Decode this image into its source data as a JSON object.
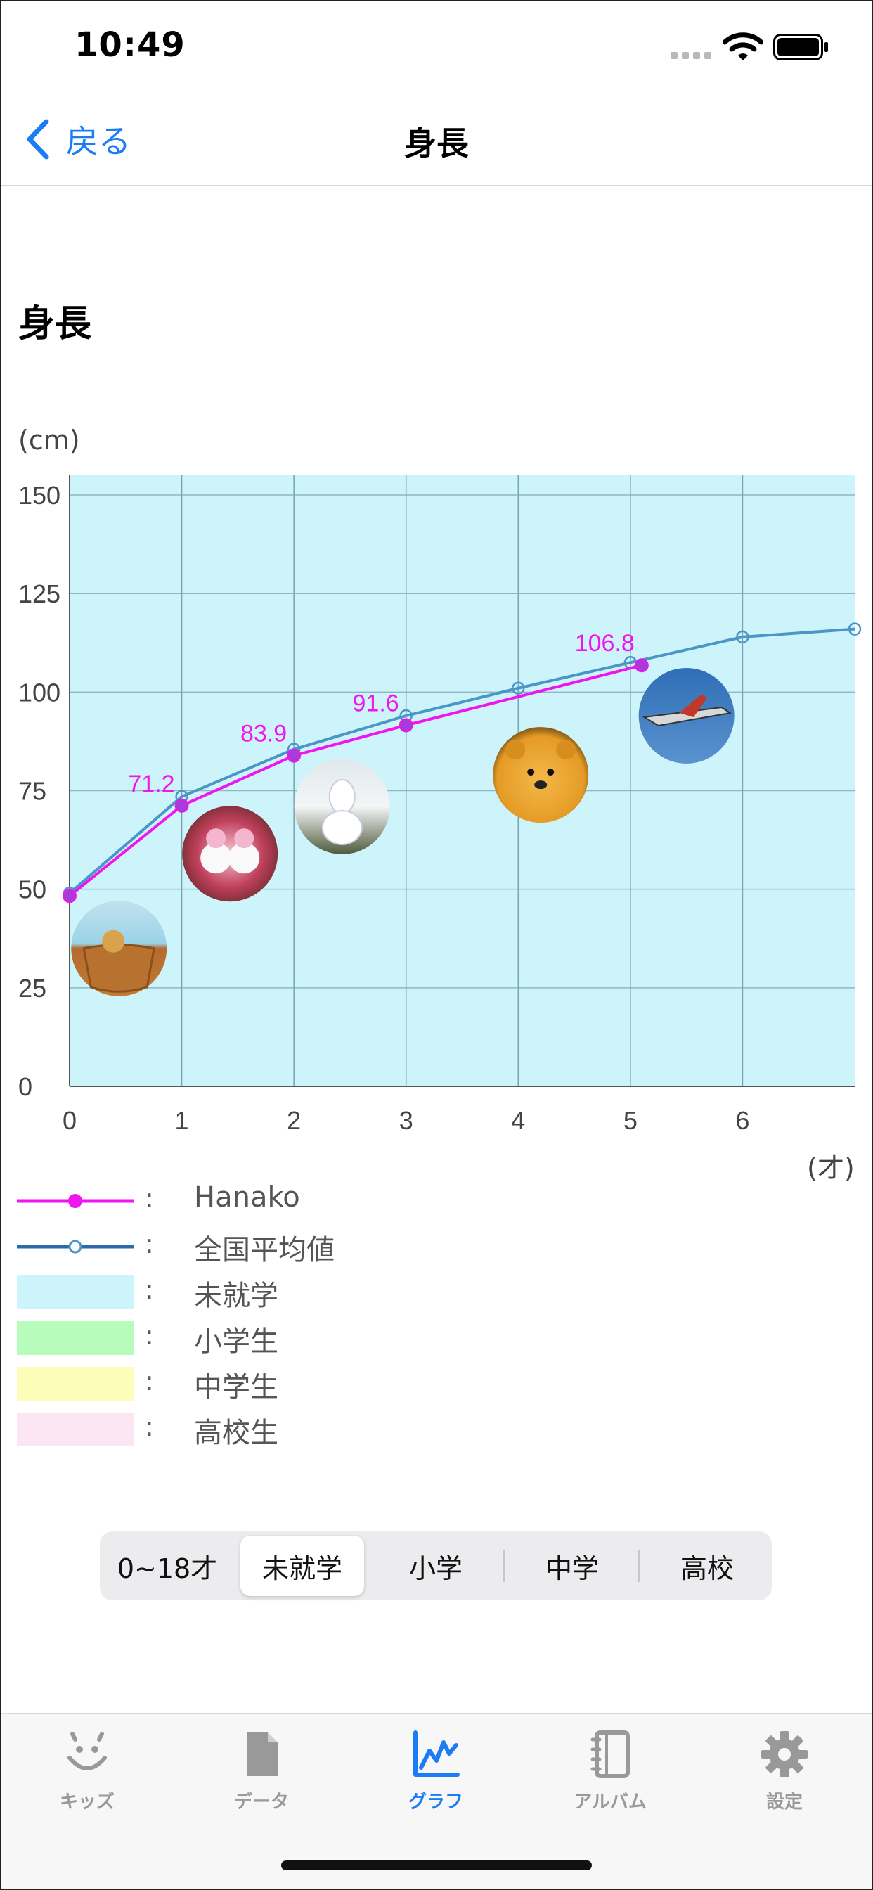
{
  "status_bar": {
    "time": "10:49"
  },
  "nav": {
    "back_label": "戻る",
    "title": "身長"
  },
  "heading": "身長",
  "colors": {
    "accent": "#1c7cf4",
    "child_line": "#f015f0",
    "average_line": "#4a97c6",
    "preschool": "#cdf3fb",
    "elementary": "#b8fcbb",
    "middle": "#fcfdb9",
    "high": "#fde6f3"
  },
  "chart_data": {
    "type": "line",
    "ylabel": "(cm)",
    "xlabel": "(才)",
    "xlim": [
      0,
      7
    ],
    "ylim": [
      0,
      155
    ],
    "x_ticks": [
      0,
      1,
      2,
      3,
      4,
      5,
      6
    ],
    "y_ticks": [
      0,
      25,
      50,
      75,
      100,
      125,
      150
    ],
    "grid": true,
    "background_band": "preschool",
    "series": [
      {
        "name": "Hanako",
        "points": [
          [
            0,
            48.3
          ],
          [
            1,
            71.2
          ],
          [
            2,
            83.9
          ],
          [
            3,
            91.6
          ],
          [
            5.1,
            106.8
          ]
        ],
        "labels": [
          "",
          "71.2",
          "83.9",
          "91.6",
          "106.8"
        ]
      },
      {
        "name": "全国平均値",
        "points": [
          [
            0,
            49
          ],
          [
            1,
            73.5
          ],
          [
            2,
            85.5
          ],
          [
            3,
            94
          ],
          [
            4,
            101
          ],
          [
            5,
            107.5
          ],
          [
            6,
            114
          ],
          [
            7,
            116
          ]
        ]
      }
    ],
    "photos": [
      {
        "x": 0.44,
        "y": 35,
        "subject": "basket"
      },
      {
        "x": 1.43,
        "y": 59,
        "subject": "mickey-minnie-snowmen"
      },
      {
        "x": 2.43,
        "y": 71,
        "subject": "olaf-snowman"
      },
      {
        "x": 4.2,
        "y": 79,
        "subject": "pooh-bear"
      },
      {
        "x": 5.5,
        "y": 94,
        "subject": "airplane-sky"
      }
    ]
  },
  "legend": [
    {
      "label": "Hanako",
      "type": "line-dot"
    },
    {
      "label": "全国平均値",
      "type": "line-circle"
    },
    {
      "label": "未就学",
      "type": "preschool"
    },
    {
      "label": "小学生",
      "type": "elementary"
    },
    {
      "label": "中学生",
      "type": "middle"
    },
    {
      "label": "高校生",
      "type": "high"
    }
  ],
  "legend_colon": ":",
  "segments": {
    "all": "0~18才",
    "preschool": "未就学",
    "elementary": "小学",
    "middle": "中学",
    "high": "高校"
  },
  "tabs": {
    "kids": "キッズ",
    "data": "データ",
    "graph": "グラフ",
    "album": "アルバム",
    "settings": "設定"
  }
}
